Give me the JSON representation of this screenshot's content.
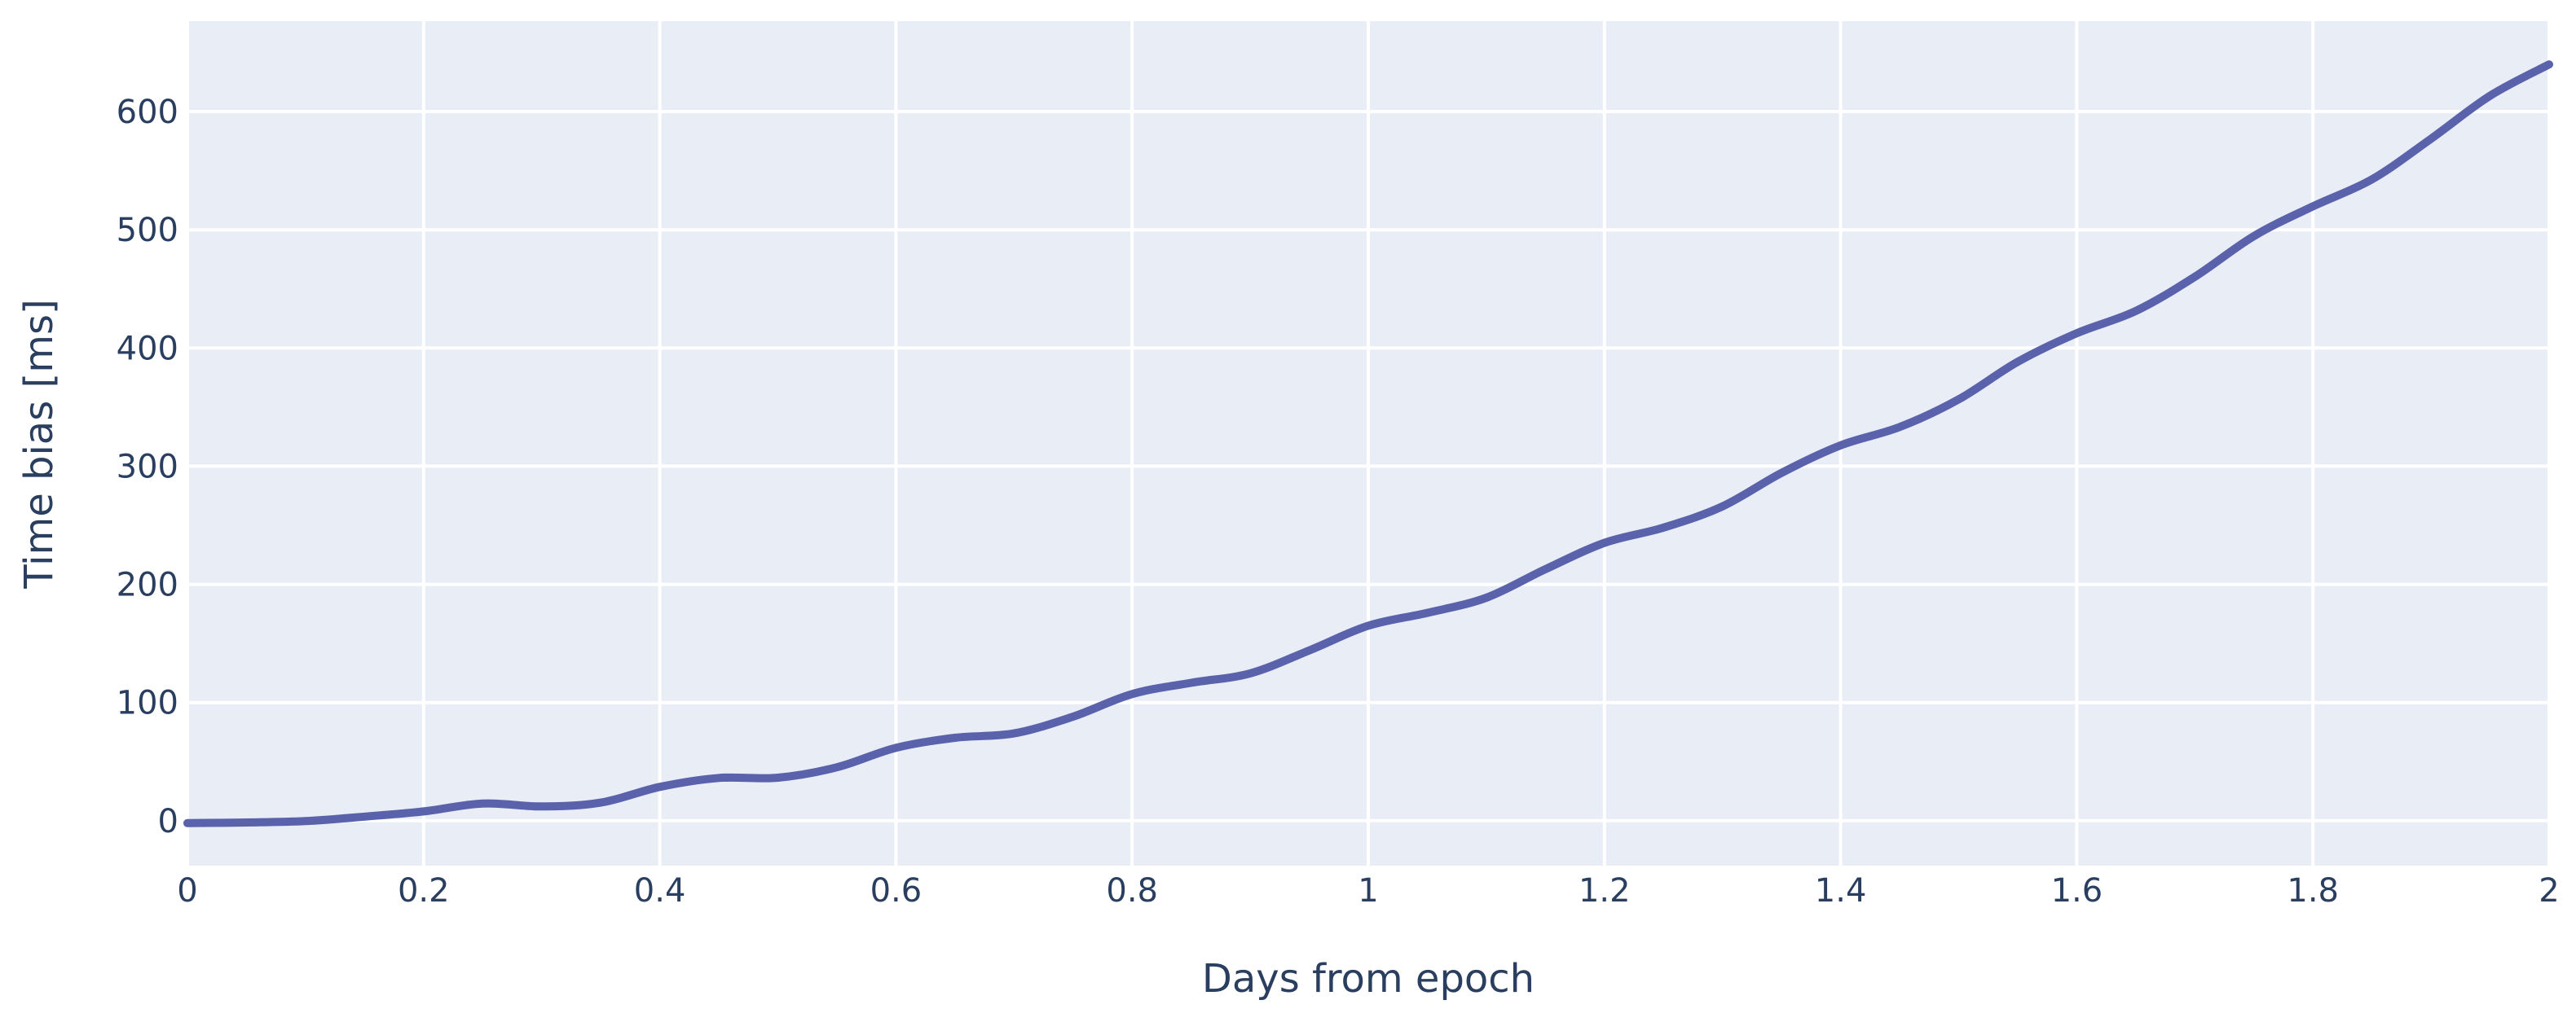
{
  "chart_data": {
    "type": "line",
    "title": "",
    "xlabel": "Days from epoch",
    "ylabel": "Time bias [ms]",
    "xlim": [
      0,
      2
    ],
    "ylim": [
      -38,
      676.5
    ],
    "grid": true,
    "legend": false,
    "x_ticks": [
      0,
      0.2,
      0.4,
      0.6,
      0.8,
      1,
      1.2,
      1.4,
      1.6,
      1.8,
      2
    ],
    "x_tick_labels": [
      "0",
      "0.2",
      "0.4",
      "0.6",
      "0.8",
      "1",
      "1.2",
      "1.4",
      "1.6",
      "1.8",
      "2"
    ],
    "y_ticks": [
      0,
      100,
      200,
      300,
      400,
      500,
      600
    ],
    "y_tick_labels": [
      "0",
      "100",
      "200",
      "300",
      "400",
      "500",
      "600"
    ],
    "series": [
      {
        "name": "time-bias",
        "x": [
          0,
          0.05,
          0.1,
          0.15,
          0.2,
          0.25,
          0.3,
          0.35,
          0.4,
          0.45,
          0.5,
          0.55,
          0.6,
          0.65,
          0.7,
          0.75,
          0.8,
          0.85,
          0.9,
          0.95,
          1,
          1.05,
          1.1,
          1.15,
          1.2,
          1.25,
          1.3,
          1.35,
          1.4,
          1.45,
          1.5,
          1.55,
          1.6,
          1.65,
          1.7,
          1.75,
          1.8,
          1.85,
          1.9,
          1.95,
          2
        ],
        "y": [
          -2,
          -1.5,
          -0.3,
          3.5,
          7.9,
          14.6,
          12.1,
          15.3,
          28.6,
          36.2,
          36.4,
          45.2,
          61.7,
          70.2,
          73.9,
          88.1,
          107.2,
          116.7,
          124.7,
          144.1,
          165,
          175.9,
          188.7,
          212.8,
          235.1,
          248,
          266,
          294.3,
          317.6,
          333.1,
          356.5,
          388.3,
          412.5,
          431.3,
          460.2,
          494.7,
          519.8,
          542.7,
          577,
          613.4,
          639.9
        ],
        "color": "#5b62ac"
      }
    ],
    "colors": {
      "paper_bg": "#ffffff",
      "plot_bg": "#e8edf6",
      "grid": "#ffffff",
      "text": "#2a3f5f",
      "line": "#5b62ac"
    }
  }
}
